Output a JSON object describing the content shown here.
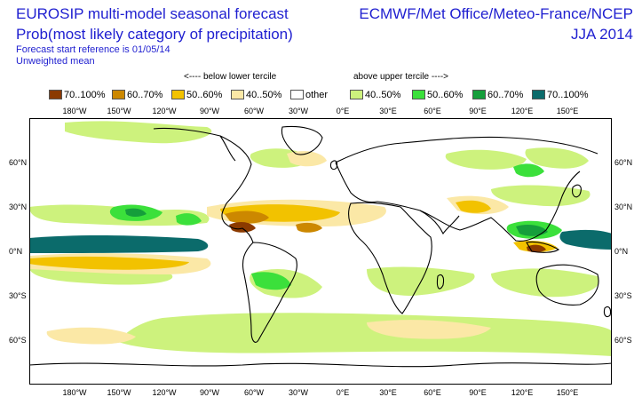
{
  "header": {
    "title_line1": "EUROSIP multi-model seasonal forecast",
    "title_line2": "Prob(most likely category of precipitation)",
    "forecast_ref": "Forecast start reference is 01/05/14",
    "weighting": "Unweighted mean",
    "centres": "ECMWF/Met Office/Meteo-France/NCEP",
    "season": "JJA 2014"
  },
  "legend": {
    "below_label": "<---- below lower tercile",
    "above_label": "above upper tercile ---->",
    "items": [
      {
        "label": "70..100%",
        "color": "#8b3a00"
      },
      {
        "label": "60..70%",
        "color": "#cc8800"
      },
      {
        "label": "50..60%",
        "color": "#f2c200"
      },
      {
        "label": "40..50%",
        "color": "#fbe8a6"
      },
      {
        "label": "other",
        "color": "#ffffff"
      },
      {
        "label": "40..50%",
        "color": "#cdf27d"
      },
      {
        "label": "50..60%",
        "color": "#3be03b"
      },
      {
        "label": "60..70%",
        "color": "#159e3b"
      },
      {
        "label": "70..100%",
        "color": "#0b6b6b"
      }
    ]
  },
  "axes": {
    "lon_labels": [
      "180°W",
      "150°W",
      "120°W",
      "90°W",
      "60°W",
      "30°W",
      "0°E",
      "30°E",
      "60°E",
      "90°E",
      "120°E",
      "150°E"
    ],
    "lat_labels": [
      "60°N",
      "30°N",
      "0°N",
      "30°S",
      "60°S"
    ]
  }
}
